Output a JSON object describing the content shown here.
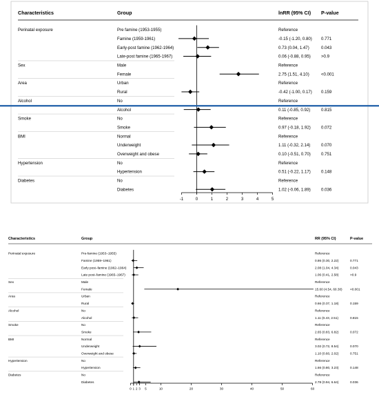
{
  "chart_data": [
    {
      "type": "forest",
      "headers": {
        "characteristics": "Characteristics",
        "group": "Group",
        "ci": "lnRR (95% CI)",
        "p": "P-value"
      },
      "ticks": [
        -1,
        0,
        1,
        2,
        3,
        4,
        5
      ],
      "xlim": [
        -1.2,
        5.2
      ],
      "reference_line": 0,
      "highlight_after_row": 9,
      "rows": [
        {
          "characteristic": "Perinatal exposure",
          "group": "Pre famine (1953-1955)",
          "est": null,
          "lo": null,
          "hi": null,
          "ci": "Reference",
          "p": ""
        },
        {
          "characteristic": "",
          "group": "Famine (1959-1961)",
          "est": -0.15,
          "lo": -1.2,
          "hi": 0.8,
          "ci": "-0.15 (-1.20, 0.80)",
          "p": "0.771"
        },
        {
          "characteristic": "",
          "group": "Early-post famine (1962-1964)",
          "est": 0.73,
          "lo": 0.04,
          "hi": 1.47,
          "ci": "0.73 (0.04, 1.47)",
          "p": "0.043"
        },
        {
          "characteristic": "",
          "group": "Late-post famine (1965-1967)",
          "est": 0.06,
          "lo": -0.88,
          "hi": 0.95,
          "ci": "0.06 (-0.88, 0.95)",
          "p": ">0.9"
        },
        {
          "characteristic": "Sex",
          "group": "Male",
          "est": null,
          "lo": null,
          "hi": null,
          "ci": "Reference",
          "p": ""
        },
        {
          "characteristic": "",
          "group": "Female",
          "est": 2.75,
          "lo": 1.51,
          "hi": 4.1,
          "ci": "2.75 (1.51, 4.10)",
          "p": "<0.001"
        },
        {
          "characteristic": "Area",
          "group": "Urban",
          "est": null,
          "lo": null,
          "hi": null,
          "ci": "Reference",
          "p": ""
        },
        {
          "characteristic": "",
          "group": "Rural",
          "est": -0.42,
          "lo": -1.0,
          "hi": 0.17,
          "ci": "-0.42 (-1.00, 0.17)",
          "p": "0.159"
        },
        {
          "characteristic": "Alcohol",
          "group": "No",
          "est": null,
          "lo": null,
          "hi": null,
          "ci": "Reference",
          "p": ""
        },
        {
          "characteristic": "",
          "group": "Alcohol",
          "est": 0.11,
          "lo": -0.85,
          "hi": 0.92,
          "ci": "0.11 (-0.85, 0.92)",
          "p": "0.815"
        },
        {
          "characteristic": "Smoke",
          "group": "No",
          "est": null,
          "lo": null,
          "hi": null,
          "ci": "Reference",
          "p": ""
        },
        {
          "characteristic": "",
          "group": "Smoke",
          "est": 0.97,
          "lo": -0.18,
          "hi": 1.92,
          "ci": "0.97 (-0.18, 1.92)",
          "p": "0.072"
        },
        {
          "characteristic": "BMI",
          "group": "Normal",
          "est": null,
          "lo": null,
          "hi": null,
          "ci": "Reference",
          "p": ""
        },
        {
          "characteristic": "",
          "group": "Underweight",
          "est": 1.11,
          "lo": -0.32,
          "hi": 2.14,
          "ci": "1.11 (-0.32, 2.14)",
          "p": "0.070"
        },
        {
          "characteristic": "",
          "group": "Overweight and obese",
          "est": 0.1,
          "lo": -0.51,
          "hi": 0.7,
          "ci": "0.10 (-0.51, 0.70)",
          "p": "0.751"
        },
        {
          "characteristic": "Hypertension",
          "group": "No",
          "est": null,
          "lo": null,
          "hi": null,
          "ci": "Reference",
          "p": ""
        },
        {
          "characteristic": "",
          "group": "Hypertension",
          "est": 0.51,
          "lo": -0.22,
          "hi": 1.17,
          "ci": "0.51 (-0.22, 1.17)",
          "p": "0.148"
        },
        {
          "characteristic": "Diabetes",
          "group": "No",
          "est": null,
          "lo": null,
          "hi": null,
          "ci": "Reference",
          "p": ""
        },
        {
          "characteristic": "",
          "group": "Diabetes",
          "est": 1.02,
          "lo": -0.06,
          "hi": 1.89,
          "ci": "1.02 (-0.06, 1.89)",
          "p": "0.036"
        }
      ]
    },
    {
      "type": "forest",
      "headers": {
        "characteristics": "Characteristics",
        "group": "Group",
        "ci": "RR (95% CI)",
        "p": "P-value"
      },
      "ticks": [
        0,
        1,
        2,
        3,
        5,
        10,
        20,
        30,
        40,
        50,
        60
      ],
      "xlim": [
        -1,
        61
      ],
      "reference_line": 1,
      "rows": [
        {
          "characteristic": "Perinatal exposure",
          "group": "Pre-famine (1953–1955)",
          "est": null,
          "lo": null,
          "hi": null,
          "ci": "Reference",
          "p": ""
        },
        {
          "characteristic": "",
          "group": "Famine (1959–1961)",
          "est": 0.86,
          "lo": 0.3,
          "hi": 2.22,
          "ci": "0.86 (0.30, 2.22)",
          "p": "0.771"
        },
        {
          "characteristic": "",
          "group": "Early post–famine (1962–1964)",
          "est": 2.08,
          "lo": 1.04,
          "hi": 4.34,
          "ci": "2.08 (1.04, 4.34)",
          "p": "0.043"
        },
        {
          "characteristic": "",
          "group": "Late post–famine (1965–1967)",
          "est": 1.06,
          "lo": 0.41,
          "hi": 2.58,
          "ci": "1.06 (0.41, 2.58)",
          "p": ">0.9"
        },
        {
          "characteristic": "Sex",
          "group": "Male",
          "est": null,
          "lo": null,
          "hi": null,
          "ci": "Reference",
          "p": ""
        },
        {
          "characteristic": "",
          "group": "Female",
          "est": 15.6,
          "lo": 4.54,
          "hi": 60.3,
          "ci": "15.60 (4.54, 60.30)",
          "p": "<0.001"
        },
        {
          "characteristic": "Area",
          "group": "Urban",
          "est": null,
          "lo": null,
          "hi": null,
          "ci": "Reference",
          "p": ""
        },
        {
          "characteristic": "",
          "group": "Rural",
          "est": 0.66,
          "lo": 0.37,
          "hi": 1.18,
          "ci": "0.66 (0.37, 1.18)",
          "p": "0.159"
        },
        {
          "characteristic": "Alcohol",
          "group": "No",
          "est": null,
          "lo": null,
          "hi": null,
          "ci": "Reference",
          "p": ""
        },
        {
          "characteristic": "",
          "group": "Alcohol",
          "est": 1.11,
          "lo": 0.43,
          "hi": 2.51,
          "ci": "1.11 (0.43, 2.51)",
          "p": "0.815"
        },
        {
          "characteristic": "Smoke",
          "group": "No",
          "est": null,
          "lo": null,
          "hi": null,
          "ci": "Reference",
          "p": ""
        },
        {
          "characteristic": "",
          "group": "Smoke",
          "est": 2.65,
          "lo": 0.83,
          "hi": 6.82,
          "ci": "2.65 (0.83, 6.82)",
          "p": "0.072"
        },
        {
          "characteristic": "BMI",
          "group": "Normal",
          "est": null,
          "lo": null,
          "hi": null,
          "ci": "Reference",
          "p": ""
        },
        {
          "characteristic": "",
          "group": "Underweight",
          "est": 3.02,
          "lo": 0.72,
          "hi": 8.54,
          "ci": "3.02 (0.72, 8.54)",
          "p": "0.070"
        },
        {
          "characteristic": "",
          "group": "Overweight and obese",
          "est": 1.1,
          "lo": 0.6,
          "hi": 2.02,
          "ci": "1.10 (0.60, 2.02)",
          "p": "0.751"
        },
        {
          "characteristic": "Hypertension",
          "group": "No",
          "est": null,
          "lo": null,
          "hi": null,
          "ci": "Reference",
          "p": ""
        },
        {
          "characteristic": "",
          "group": "Hypertension",
          "est": 1.66,
          "lo": 0.8,
          "hi": 3.23,
          "ci": "1.66 (0.80, 3.23)",
          "p": "0.148"
        },
        {
          "characteristic": "Diabetes",
          "group": "No",
          "est": null,
          "lo": null,
          "hi": null,
          "ci": "Reference",
          "p": ""
        },
        {
          "characteristic": "",
          "group": "Diabetes",
          "est": 2.78,
          "lo": 0.94,
          "hi": 6.64,
          "ci": "2.78 (0.94, 6.64)",
          "p": "0.036"
        }
      ]
    }
  ],
  "colors": {
    "highlight_line": "#1f5fa8",
    "frame": "#c8c8c8",
    "text": "#111111",
    "ink": "#000000"
  }
}
